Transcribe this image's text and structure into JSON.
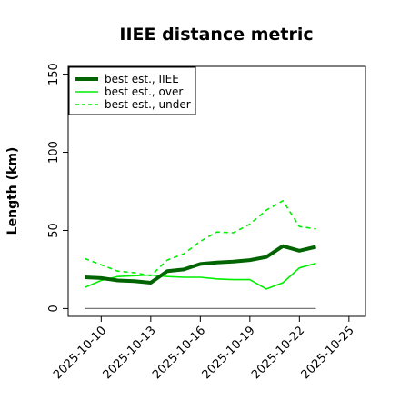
{
  "chart_data": {
    "type": "line",
    "title": "IIEE distance metric",
    "xlabel": "",
    "ylabel": "Length (km)",
    "x": [
      "2025-10-09",
      "2025-10-10",
      "2025-10-11",
      "2025-10-12",
      "2025-10-13",
      "2025-10-14",
      "2025-10-15",
      "2025-10-16",
      "2025-10-17",
      "2025-10-18",
      "2025-10-19",
      "2025-10-20",
      "2025-10-21",
      "2025-10-22",
      "2025-10-23"
    ],
    "xticks": [
      "2025-10-10",
      "2025-10-13",
      "2025-10-16",
      "2025-10-19",
      "2025-10-22",
      "2025-10-25"
    ],
    "xlim": [
      "2025-10-08",
      "2025-10-26"
    ],
    "yticks": [
      0,
      50,
      100,
      150
    ],
    "ylim": [
      -5,
      155
    ],
    "grid": false,
    "legend_position": "top-left",
    "series": [
      {
        "name": "best est., IIEE",
        "style": "thick-solid",
        "color": "#006400",
        "values": [
          20,
          19.5,
          18,
          17.5,
          16.5,
          24,
          25,
          28.5,
          29.5,
          30,
          31,
          33,
          40,
          37,
          39.5
        ]
      },
      {
        "name": "best est., over",
        "style": "solid",
        "color": "#00ee00",
        "values": [
          13.5,
          18,
          20.5,
          21,
          21.5,
          20.5,
          20,
          20,
          19,
          18.5,
          18.5,
          12.5,
          16.5,
          26,
          29
        ]
      },
      {
        "name": "best est., under",
        "style": "dashed",
        "color": "#00ee00",
        "values": [
          32,
          28,
          24,
          23,
          21,
          31,
          35,
          43,
          49,
          48.5,
          54,
          63,
          69,
          52.5,
          51
        ]
      },
      {
        "name": "",
        "style": "reference",
        "color": "#777777",
        "values": [
          0,
          0,
          0,
          0,
          0,
          0,
          0,
          0,
          0,
          0,
          0,
          0,
          0,
          0,
          0
        ]
      }
    ]
  }
}
